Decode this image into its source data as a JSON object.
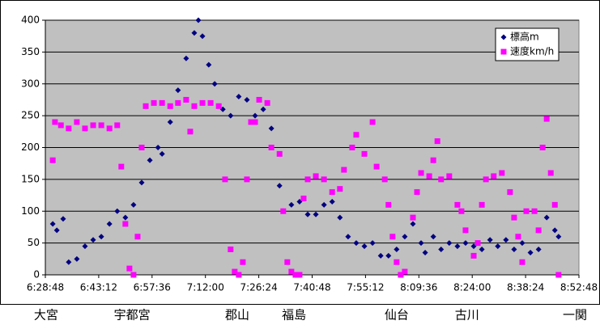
{
  "chart_data": {
    "type": "scatter",
    "xlim": [
      388.8,
      532.8
    ],
    "xticks": [
      {
        "value": 388.8,
        "label": "6:28:48"
      },
      {
        "value": 403.2,
        "label": "6:43:12"
      },
      {
        "value": 417.6,
        "label": "6:57:36"
      },
      {
        "value": 432,
        "label": "7:12:00"
      },
      {
        "value": 446.4,
        "label": "7:26:24"
      },
      {
        "value": 460.8,
        "label": "7:40:48"
      },
      {
        "value": 475.2,
        "label": "7:55:12"
      },
      {
        "value": 489.6,
        "label": "8:09:36"
      },
      {
        "value": 504,
        "label": "8:24:00"
      },
      {
        "value": 518.4,
        "label": "8:38:24"
      },
      {
        "value": 532.8,
        "label": "8:52:48"
      }
    ],
    "ylim": [
      0,
      400
    ],
    "yticks": [
      0,
      50,
      100,
      150,
      200,
      250,
      300,
      350,
      400
    ],
    "grid": true,
    "legend": "top-right",
    "annotations": [
      {
        "label": "大宮",
        "x": 389.0
      },
      {
        "label": "宇都宮",
        "x": 412.2
      },
      {
        "label": "郡山",
        "x": 440.6
      },
      {
        "label": "福島",
        "x": 455.9
      },
      {
        "label": "仙台",
        "x": 483.6
      },
      {
        "label": "古川",
        "x": 502.6
      },
      {
        "label": "一関",
        "x": 531.7
      }
    ],
    "series": [
      {
        "name": "標高m",
        "color": "#000080",
        "marker": "diamond",
        "x": [
          390.8,
          391.9,
          393.6,
          395.1,
          397.3,
          399.5,
          401.7,
          403.9,
          406.1,
          408.2,
          410.4,
          412.6,
          414.8,
          417.0,
          419.2,
          420.3,
          422.5,
          424.6,
          426.8,
          429.0,
          430.1,
          431.2,
          432.9,
          434.5,
          436.7,
          438.8,
          441.0,
          443.2,
          445.4,
          447.6,
          449.8,
          452.0,
          453.0,
          455.2,
          457.4,
          459.6,
          461.8,
          464.0,
          466.2,
          468.3,
          470.5,
          472.7,
          474.9,
          477.1,
          479.3,
          481.4,
          483.6,
          485.8,
          488.0,
          489.1,
          490.2,
          491.3,
          493.5,
          495.6,
          497.8,
          500.0,
          502.2,
          504.4,
          506.6,
          508.8,
          510.9,
          513.1,
          515.3,
          517.5,
          519.7,
          521.9,
          524.1,
          526.3,
          527.3
        ],
        "values": [
          80,
          70,
          88,
          20,
          25,
          45,
          55,
          60,
          80,
          100,
          90,
          110,
          145,
          180,
          200,
          190,
          240,
          290,
          340,
          380,
          400,
          375,
          330,
          300,
          260,
          250,
          280,
          275,
          250,
          260,
          230,
          140,
          100,
          110,
          115,
          95,
          95,
          110,
          115,
          90,
          60,
          50,
          45,
          50,
          30,
          30,
          40,
          60,
          80,
          130,
          50,
          35,
          60,
          40,
          50,
          45,
          50,
          45,
          40,
          55,
          45,
          55,
          40,
          50,
          35,
          40,
          90,
          70,
          60
        ]
      },
      {
        "name": "速度km/h",
        "color": "#ff00ff",
        "marker": "square",
        "x": [
          390.8,
          391.4,
          393.0,
          395.1,
          397.3,
          399.5,
          401.7,
          403.9,
          406.1,
          408.2,
          409.3,
          410.4,
          411.5,
          412.6,
          413.7,
          414.8,
          415.9,
          418.1,
          420.3,
          422.5,
          424.6,
          426.8,
          427.9,
          429.0,
          431.2,
          433.4,
          435.6,
          437.3,
          438.8,
          439.9,
          441.0,
          442.1,
          443.2,
          444.3,
          445.4,
          446.5,
          448.7,
          449.8,
          452.0,
          453.0,
          454.1,
          455.2,
          456.3,
          457.4,
          458.5,
          459.6,
          461.8,
          464.0,
          466.2,
          468.3,
          469.4,
          471.6,
          472.7,
          474.9,
          477.1,
          478.2,
          480.4,
          481.4,
          482.5,
          483.6,
          484.7,
          485.8,
          488.0,
          489.1,
          490.2,
          492.4,
          493.5,
          494.6,
          495.6,
          497.8,
          500.0,
          501.1,
          502.2,
          504.4,
          505.5,
          506.6,
          507.7,
          509.8,
          512.0,
          514.2,
          515.3,
          516.4,
          517.5,
          518.6,
          520.8,
          521.9,
          523.0,
          524.1,
          525.2,
          526.3,
          527.3
        ],
        "values": [
          180,
          240,
          235,
          230,
          240,
          230,
          235,
          235,
          230,
          235,
          170,
          80,
          10,
          0,
          60,
          200,
          265,
          270,
          270,
          265,
          270,
          275,
          225,
          265,
          270,
          270,
          265,
          150,
          40,
          5,
          0,
          20,
          150,
          240,
          240,
          275,
          270,
          200,
          190,
          100,
          20,
          5,
          0,
          0,
          120,
          150,
          155,
          150,
          130,
          135,
          165,
          200,
          220,
          190,
          240,
          170,
          150,
          110,
          60,
          20,
          0,
          5,
          90,
          130,
          160,
          155,
          180,
          210,
          150,
          155,
          110,
          100,
          70,
          30,
          50,
          110,
          150,
          155,
          160,
          130,
          90,
          60,
          20,
          100,
          100,
          70,
          200,
          245,
          160,
          110,
          0
        ]
      }
    ]
  }
}
